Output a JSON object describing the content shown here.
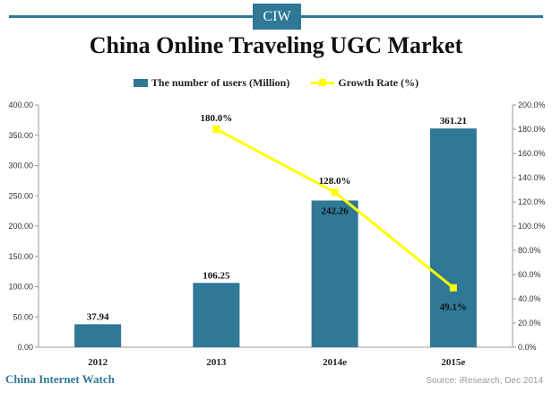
{
  "badge": "CIW",
  "footer": {
    "brand": "China Internet Watch",
    "source": "Source: iResearch, Dec 2014"
  },
  "colors": {
    "bar": "#2f7896",
    "line": "#ffff00",
    "accent": "#2f7896"
  },
  "chart_data": {
    "type": "bar",
    "title": "China Online Traveling UGC Market",
    "categories": [
      "2012",
      "2013",
      "2014e",
      "2015e"
    ],
    "series": [
      {
        "name": "The number of users (Million)",
        "type": "bar",
        "axis": "left",
        "values": [
          37.94,
          106.25,
          242.26,
          361.21
        ],
        "labels": [
          "37.94",
          "106.25",
          "242.26",
          "361.21"
        ]
      },
      {
        "name": "Growth Rate (%)",
        "type": "line",
        "axis": "right",
        "values": [
          null,
          180.0,
          128.0,
          49.1
        ],
        "labels": [
          "",
          "180.0%",
          "128.0%",
          "49.1%"
        ]
      }
    ],
    "y_left": {
      "ylim": [
        0,
        400
      ],
      "ticks": [
        "0.00",
        "50.00",
        "100.00",
        "150.00",
        "200.00",
        "250.00",
        "300.00",
        "350.00",
        "400.00"
      ]
    },
    "y_right": {
      "ylim": [
        0,
        200
      ],
      "ticks": [
        "0.0%",
        "20.0%",
        "40.0%",
        "60.0%",
        "80.0%",
        "100.0%",
        "120.0%",
        "140.0%",
        "160.0%",
        "180.0%",
        "200.0%"
      ]
    },
    "legend": "top-center",
    "grid": false
  }
}
